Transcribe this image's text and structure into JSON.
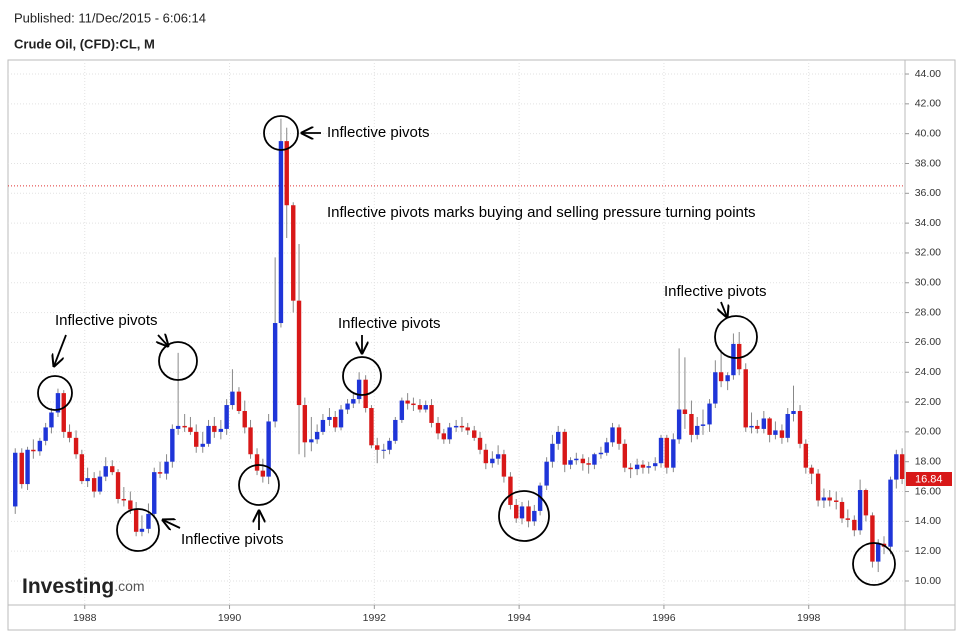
{
  "chart_data": {
    "type": "candlestick",
    "subtitle": "Published: 11/Dec/2015 - 6:06:14",
    "title": "Crude Oil, (CFD):CL, M",
    "up_color": "#1f35d8",
    "down_color": "#d81818",
    "x": [
      1987.04,
      1987.13,
      1987.21,
      1987.29,
      1987.38,
      1987.46,
      1987.54,
      1987.63,
      1987.71,
      1987.79,
      1987.88,
      1987.96,
      1988.04,
      1988.13,
      1988.21,
      1988.29,
      1988.38,
      1988.46,
      1988.54,
      1988.63,
      1988.71,
      1988.79,
      1988.88,
      1988.96,
      1989.04,
      1989.13,
      1989.21,
      1989.29,
      1989.38,
      1989.46,
      1989.54,
      1989.63,
      1989.71,
      1989.79,
      1989.88,
      1989.96,
      1990.04,
      1990.13,
      1990.21,
      1990.29,
      1990.38,
      1990.46,
      1990.54,
      1990.63,
      1990.71,
      1990.79,
      1990.88,
      1990.96,
      1991.04,
      1991.13,
      1991.21,
      1991.29,
      1991.38,
      1991.46,
      1991.54,
      1991.63,
      1991.71,
      1991.79,
      1991.88,
      1991.96,
      1992.04,
      1992.13,
      1992.21,
      1992.29,
      1992.38,
      1992.46,
      1992.54,
      1992.63,
      1992.71,
      1992.79,
      1992.88,
      1992.96,
      1993.04,
      1993.13,
      1993.21,
      1993.29,
      1993.38,
      1993.46,
      1993.54,
      1993.63,
      1993.71,
      1993.79,
      1993.88,
      1993.96,
      1994.04,
      1994.13,
      1994.21,
      1994.29,
      1994.38,
      1994.46,
      1994.54,
      1994.63,
      1994.71,
      1994.79,
      1994.88,
      1994.96,
      1995.04,
      1995.13,
      1995.21,
      1995.29,
      1995.38,
      1995.46,
      1995.54,
      1995.63,
      1995.71,
      1995.79,
      1995.88,
      1995.96,
      1996.04,
      1996.13,
      1996.21,
      1996.29,
      1996.38,
      1996.46,
      1996.54,
      1996.63,
      1996.71,
      1996.79,
      1996.88,
      1996.96,
      1997.04,
      1997.13,
      1997.21,
      1997.29,
      1997.38,
      1997.46,
      1997.54,
      1997.63,
      1997.71,
      1997.79,
      1997.88,
      1997.96,
      1998.04,
      1998.13,
      1998.21,
      1998.29,
      1998.38,
      1998.46,
      1998.54,
      1998.63,
      1998.71,
      1998.79,
      1998.88,
      1998.96,
      1999.04,
      1999.13,
      1999.21,
      1999.29
    ],
    "open": [
      15.0,
      18.6,
      16.5,
      18.8,
      18.7,
      19.4,
      20.3,
      21.3,
      22.6,
      20.0,
      19.6,
      18.5,
      16.7,
      16.9,
      16.0,
      17.0,
      17.7,
      17.3,
      15.5,
      15.4,
      14.8,
      13.3,
      13.5,
      14.5,
      17.3,
      17.2,
      18.0,
      20.2,
      20.4,
      20.3,
      20.0,
      19.0,
      19.2,
      20.4,
      20.0,
      20.2,
      21.8,
      22.7,
      21.4,
      20.3,
      18.5,
      17.4,
      17.0,
      20.7,
      27.3,
      39.5,
      35.2,
      28.8,
      21.8,
      19.3,
      19.5,
      20.0,
      20.8,
      21.0,
      20.3,
      21.5,
      21.9,
      22.2,
      23.5,
      21.6,
      19.1,
      18.8,
      18.8,
      19.4,
      20.8,
      22.1,
      21.9,
      21.8,
      21.5,
      21.8,
      20.6,
      19.9,
      19.5,
      20.3,
      20.4,
      20.3,
      20.1,
      19.6,
      18.8,
      17.9,
      18.2,
      18.5,
      17.0,
      15.1,
      14.2,
      15.0,
      14.0,
      14.7,
      16.4,
      18.0,
      19.2,
      20.0,
      17.8,
      18.1,
      18.2,
      17.9,
      17.8,
      18.5,
      18.6,
      19.3,
      20.3,
      19.2,
      17.6,
      17.5,
      17.8,
      17.6,
      17.7,
      17.9,
      19.6,
      17.6,
      19.5,
      21.5,
      21.2,
      19.8,
      20.4,
      20.5,
      21.9,
      24.0,
      23.4,
      23.8,
      25.9,
      24.2,
      20.3,
      20.4,
      20.2,
      20.9,
      19.8,
      20.1,
      19.6,
      21.2,
      21.4,
      19.2,
      17.6,
      17.2,
      15.4,
      15.6,
      15.4,
      15.3,
      14.2,
      14.1,
      13.4,
      16.1,
      14.4,
      11.3,
      12.5,
      12.3,
      16.8,
      18.5
    ],
    "high": [
      18.9,
      18.9,
      19.0,
      19.5,
      19.6,
      20.6,
      21.6,
      22.9,
      22.8,
      20.5,
      20.1,
      18.8,
      17.6,
      17.3,
      17.4,
      18.3,
      18.1,
      17.5,
      16.3,
      16.0,
      15.3,
      14.4,
      15.2,
      17.6,
      18.0,
      18.5,
      20.5,
      25.3,
      21.2,
      21.0,
      20.5,
      20.0,
      20.8,
      21.0,
      20.8,
      22.2,
      24.2,
      23.0,
      22.1,
      20.8,
      18.9,
      18.2,
      21.2,
      31.7,
      41.0,
      40.4,
      35.4,
      32.6,
      22.3,
      21.0,
      20.5,
      21.2,
      21.6,
      21.4,
      21.8,
      22.2,
      22.6,
      24.0,
      23.8,
      21.8,
      19.6,
      19.2,
      19.6,
      21.0,
      22.3,
      22.6,
      22.3,
      22.2,
      22.1,
      22.2,
      21.0,
      20.2,
      20.6,
      20.8,
      21.0,
      20.6,
      20.4,
      20.0,
      19.2,
      18.7,
      19.1,
      18.8,
      17.3,
      15.5,
      15.3,
      15.4,
      15.1,
      16.6,
      18.3,
      19.8,
      20.4,
      20.2,
      18.3,
      18.6,
      18.5,
      18.3,
      18.6,
      19.0,
      19.6,
      20.6,
      20.5,
      19.5,
      17.9,
      18.2,
      18.1,
      18.0,
      18.3,
      19.8,
      19.8,
      19.9,
      25.6,
      25.0,
      22.1,
      21.0,
      21.5,
      22.2,
      24.8,
      25.5,
      24.0,
      26.6,
      26.7,
      24.6,
      21.3,
      20.8,
      21.4,
      21.0,
      20.7,
      20.5,
      21.6,
      23.1,
      21.8,
      19.5,
      17.8,
      17.5,
      16.2,
      16.1,
      16.0,
      15.6,
      14.8,
      14.4,
      16.8,
      16.2,
      14.6,
      12.8,
      13.0,
      17.0,
      18.8,
      18.9
    ],
    "low": [
      14.5,
      16.2,
      16.1,
      18.2,
      18.4,
      19.1,
      19.9,
      21.0,
      19.6,
      19.3,
      18.2,
      16.5,
      16.3,
      15.6,
      15.8,
      16.7,
      17.1,
      15.2,
      15.0,
      14.5,
      13.0,
      13.0,
      13.2,
      14.2,
      16.9,
      16.8,
      17.6,
      19.8,
      20.0,
      19.8,
      18.6,
      18.6,
      19.0,
      19.6,
      19.5,
      19.8,
      21.5,
      21.2,
      19.9,
      18.2,
      17.1,
      16.6,
      16.5,
      20.3,
      27.0,
      33.0,
      28.0,
      18.5,
      18.3,
      18.7,
      19.2,
      19.8,
      20.4,
      20.0,
      20.1,
      21.2,
      21.6,
      21.9,
      21.3,
      18.9,
      17.9,
      18.2,
      18.5,
      19.2,
      20.6,
      21.5,
      21.4,
      21.3,
      21.3,
      20.3,
      19.5,
      19.2,
      19.2,
      20.0,
      20.0,
      19.8,
      19.4,
      18.5,
      17.5,
      17.6,
      17.8,
      16.6,
      14.8,
      13.9,
      13.8,
      13.6,
      13.7,
      14.4,
      16.1,
      17.6,
      18.8,
      17.3,
      17.5,
      17.8,
      17.4,
      17.2,
      17.5,
      18.2,
      18.4,
      19.0,
      18.8,
      17.3,
      16.9,
      17.1,
      17.2,
      17.2,
      17.4,
      17.6,
      17.2,
      17.3,
      19.2,
      20.2,
      19.3,
      19.5,
      19.8,
      20.0,
      21.6,
      23.0,
      22.8,
      23.5,
      23.8,
      20.0,
      19.9,
      19.9,
      19.9,
      19.3,
      19.5,
      19.2,
      19.3,
      20.7,
      18.9,
      17.2,
      16.5,
      15.0,
      14.9,
      15.0,
      14.8,
      13.9,
      13.6,
      13.0,
      13.1,
      14.0,
      10.9,
      10.6,
      11.8,
      11.8,
      16.2,
      16.5
    ],
    "close": [
      18.6,
      16.5,
      18.8,
      18.7,
      19.4,
      20.3,
      21.3,
      22.6,
      20.0,
      19.6,
      18.5,
      16.7,
      16.9,
      16.0,
      17.0,
      17.7,
      17.3,
      15.5,
      15.4,
      14.8,
      13.3,
      13.5,
      14.5,
      17.3,
      17.2,
      18.0,
      20.2,
      20.4,
      20.3,
      20.0,
      19.0,
      19.2,
      20.4,
      20.0,
      20.2,
      21.8,
      22.7,
      21.4,
      20.3,
      18.5,
      17.4,
      17.0,
      20.7,
      27.3,
      39.5,
      35.2,
      28.8,
      21.8,
      19.3,
      19.5,
      20.0,
      20.8,
      21.0,
      20.3,
      21.5,
      21.9,
      22.2,
      23.5,
      21.6,
      19.1,
      18.8,
      18.8,
      19.4,
      20.8,
      22.1,
      21.9,
      21.8,
      21.5,
      21.8,
      20.6,
      19.9,
      19.5,
      20.3,
      20.4,
      20.3,
      20.1,
      19.6,
      18.8,
      17.9,
      18.2,
      18.5,
      17.0,
      15.1,
      14.2,
      15.0,
      14.0,
      14.7,
      16.4,
      18.0,
      19.2,
      20.0,
      17.8,
      18.1,
      18.2,
      17.9,
      17.8,
      18.5,
      18.6,
      19.3,
      20.3,
      19.2,
      17.6,
      17.5,
      17.8,
      17.6,
      17.7,
      17.9,
      19.6,
      17.6,
      19.5,
      21.5,
      21.2,
      19.8,
      20.4,
      20.5,
      21.9,
      24.0,
      23.4,
      23.8,
      25.9,
      24.2,
      20.3,
      20.4,
      20.2,
      20.9,
      19.8,
      20.1,
      19.6,
      21.2,
      21.4,
      19.2,
      17.6,
      17.2,
      15.4,
      15.6,
      15.4,
      15.3,
      14.2,
      14.1,
      13.4,
      16.1,
      14.4,
      11.3,
      12.5,
      12.3,
      16.8,
      18.5,
      16.84
    ],
    "xlim": [
      1986.94,
      1999.33
    ],
    "ylim": [
      8.39,
      44.94
    ],
    "xticks": [
      1988,
      1990,
      1992,
      1994,
      1996,
      1998
    ],
    "yticks": [
      {
        "value": 10,
        "label": "10.00"
      },
      {
        "value": 12,
        "label": "12.00"
      },
      {
        "value": 14,
        "label": "14.00"
      },
      {
        "value": 16,
        "label": "16.00"
      },
      {
        "value": 18,
        "label": "18.00"
      },
      {
        "value": 20,
        "label": "20.00"
      },
      {
        "value": 22,
        "label": "22.00"
      },
      {
        "value": 24,
        "label": "24.00"
      },
      {
        "value": 26,
        "label": "26.00"
      },
      {
        "value": 28,
        "label": "28.00"
      },
      {
        "value": 30,
        "label": "30.00"
      },
      {
        "value": 32,
        "label": "32.00"
      },
      {
        "value": 34,
        "label": "34.00"
      },
      {
        "value": 36,
        "label": "36.00"
      },
      {
        "value": 38,
        "label": "38.00"
      },
      {
        "value": 40,
        "label": "40.00"
      },
      {
        "value": 42,
        "label": "42.00"
      },
      {
        "value": 44,
        "label": "44.00"
      }
    ],
    "grid": true,
    "reference_line": {
      "value": 36.5,
      "color": "#e03030"
    },
    "annotations": [
      "Inflective pivots",
      "Inflective pivots",
      "Inflective pivots",
      "Inflective pivots",
      "Inflective pivots"
    ],
    "note": "Inflective pivots marks buying and selling pressure turning points",
    "note_color": "#9b1fd1",
    "logo": [
      "Investing",
      ".com"
    ]
  }
}
